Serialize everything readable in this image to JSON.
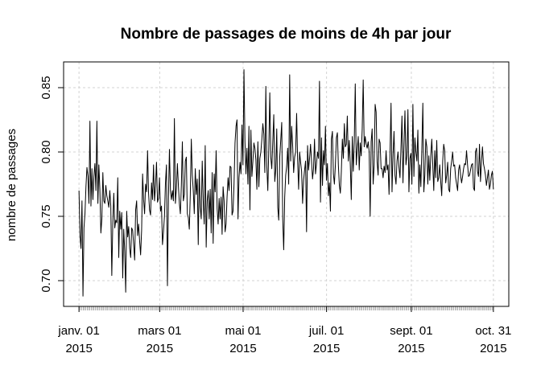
{
  "chart_data": {
    "type": "line",
    "title": "Nombre de passages de moins de 4h par jour",
    "xlabel": "",
    "ylabel": "nombre de passages",
    "x_start": "2015-01-01",
    "x_end": "2015-10-31",
    "ylim": [
      0.68,
      0.87
    ],
    "y_ticks": [
      0.7,
      0.75,
      0.8,
      0.85
    ],
    "y_tick_labels": [
      "0.70",
      "0.75",
      "0.80",
      "0.85"
    ],
    "x_ticks": [
      {
        "date": "2015-01-01",
        "line1": "janv. 01",
        "line2": "2015"
      },
      {
        "date": "2015-03-01",
        "line1": "mars 01",
        "line2": "2015"
      },
      {
        "date": "2015-05-01",
        "line1": "mai 01",
        "line2": "2015"
      },
      {
        "date": "2015-07-01",
        "line1": "juil. 01",
        "line2": "2015"
      },
      {
        "date": "2015-09-01",
        "line1": "sept. 01",
        "line2": "2015"
      },
      {
        "date": "2015-10-31",
        "line1": "oct. 31",
        "line2": "2015"
      }
    ],
    "grid": true,
    "line_color": "#000000",
    "values": [
      0.77,
      0.735,
      0.725,
      0.762,
      0.688,
      0.741,
      0.752,
      0.773,
      0.788,
      0.781,
      0.76,
      0.824,
      0.758,
      0.787,
      0.763,
      0.781,
      0.791,
      0.77,
      0.824,
      0.76,
      0.79,
      0.771,
      0.737,
      0.748,
      0.784,
      0.762,
      0.76,
      0.774,
      0.766,
      0.762,
      0.757,
      0.77,
      0.758,
      0.704,
      0.745,
      0.768,
      0.741,
      0.747,
      0.745,
      0.78,
      0.718,
      0.754,
      0.74,
      0.753,
      0.702,
      0.74,
      0.723,
      0.691,
      0.754,
      0.734,
      0.742,
      0.725,
      0.718,
      0.741,
      0.739,
      0.728,
      0.716,
      0.755,
      0.762,
      0.735,
      0.744,
      0.731,
      0.72,
      0.739,
      0.783,
      0.763,
      0.752,
      0.775,
      0.769,
      0.801,
      0.768,
      0.755,
      0.751,
      0.776,
      0.763,
      0.79,
      0.762,
      0.774,
      0.792,
      0.761,
      0.764,
      0.78,
      0.754,
      0.758,
      0.728,
      0.738,
      0.75,
      0.776,
      0.79,
      0.696,
      0.763,
      0.802,
      0.77,
      0.763,
      0.77,
      0.762,
      0.826,
      0.76,
      0.772,
      0.791,
      0.774,
      0.76,
      0.752,
      0.774,
      0.808,
      0.762,
      0.767,
      0.793,
      0.796,
      0.752,
      0.749,
      0.74,
      0.767,
      0.81,
      0.782,
      0.77,
      0.752,
      0.787,
      0.767,
      0.779,
      0.728,
      0.786,
      0.757,
      0.748,
      0.793,
      0.762,
      0.744,
      0.805,
      0.726,
      0.762,
      0.77,
      0.748,
      0.771,
      0.737,
      0.784,
      0.729,
      0.783,
      0.769,
      0.801,
      0.756,
      0.744,
      0.764,
      0.748,
      0.765,
      0.736,
      0.773,
      0.762,
      0.738,
      0.744,
      0.765,
      0.78,
      0.77,
      0.789,
      0.788,
      0.751,
      0.754,
      0.775,
      0.807,
      0.82,
      0.825,
      0.748,
      0.78,
      0.792,
      0.783,
      0.821,
      0.79,
      0.864,
      0.808,
      0.783,
      0.803,
      0.775,
      0.82,
      0.755,
      0.817,
      0.781,
      0.793,
      0.807,
      0.803,
      0.794,
      0.771,
      0.808,
      0.773,
      0.795,
      0.8,
      0.81,
      0.822,
      0.814,
      0.784,
      0.851,
      0.789,
      0.77,
      0.803,
      0.846,
      0.796,
      0.787,
      0.808,
      0.829,
      0.777,
      0.786,
      0.818,
      0.757,
      0.747,
      0.796,
      0.809,
      0.823,
      0.748,
      0.724,
      0.765,
      0.782,
      0.789,
      0.803,
      0.775,
      0.86,
      0.793,
      0.82,
      0.805,
      0.784,
      0.796,
      0.8,
      0.83,
      0.794,
      0.771,
      0.8,
      0.792,
      0.785,
      0.76,
      0.778,
      0.786,
      0.793,
      0.738,
      0.805,
      0.786,
      0.795,
      0.806,
      0.793,
      0.779,
      0.787,
      0.81,
      0.783,
      0.791,
      0.8,
      0.795,
      0.855,
      0.761,
      0.811,
      0.774,
      0.801,
      0.79,
      0.82,
      0.778,
      0.791,
      0.766,
      0.776,
      0.754,
      0.81,
      0.816,
      0.783,
      0.775,
      0.79,
      0.811,
      0.815,
      0.79,
      0.774,
      0.768,
      0.785,
      0.81,
      0.795,
      0.822,
      0.804,
      0.806,
      0.828,
      0.793,
      0.809,
      0.79,
      0.763,
      0.812,
      0.785,
      0.808,
      0.853,
      0.79,
      0.802,
      0.812,
      0.786,
      0.807,
      0.797,
      0.818,
      0.856,
      0.804,
      0.812,
      0.806,
      0.803,
      0.808,
      0.8,
      0.75,
      0.808,
      0.818,
      0.775,
      0.79,
      0.837,
      0.831,
      0.792,
      0.782,
      0.81,
      0.807,
      0.787,
      0.787,
      0.78,
      0.789,
      0.784,
      0.801,
      0.786,
      0.79,
      0.767,
      0.8,
      0.838,
      0.769,
      0.798,
      0.816,
      0.782,
      0.775,
      0.793,
      0.8,
      0.788,
      0.78,
      0.803,
      0.828,
      0.776,
      0.805,
      0.832,
      0.79,
      0.797,
      0.833,
      0.769,
      0.795,
      0.799,
      0.775,
      0.837,
      0.781,
      0.811,
      0.8,
      0.793,
      0.817,
      0.768,
      0.79,
      0.773,
      0.802,
      0.838,
      0.769,
      0.782,
      0.81,
      0.804,
      0.775,
      0.797,
      0.778,
      0.797,
      0.81,
      0.79,
      0.77,
      0.801,
      0.78,
      0.809,
      0.777,
      0.78,
      0.79,
      0.777,
      0.766,
      0.793,
      0.806,
      0.801,
      0.776,
      0.782,
      0.792,
      0.771,
      0.769,
      0.787,
      0.793,
      0.8,
      0.789,
      0.79,
      0.78,
      0.775,
      0.77,
      0.786,
      0.79,
      0.782,
      0.776,
      0.781,
      0.787,
      0.791,
      0.79,
      0.801,
      0.79,
      0.781,
      0.782,
      0.786,
      0.79,
      0.791,
      0.772,
      0.77,
      0.8,
      0.803,
      0.785,
      0.781,
      0.806,
      0.777,
      0.792,
      0.804,
      0.791,
      0.787,
      0.782,
      0.774,
      0.78,
      0.786,
      0.771,
      0.775,
      0.782,
      0.785,
      0.771
    ]
  }
}
